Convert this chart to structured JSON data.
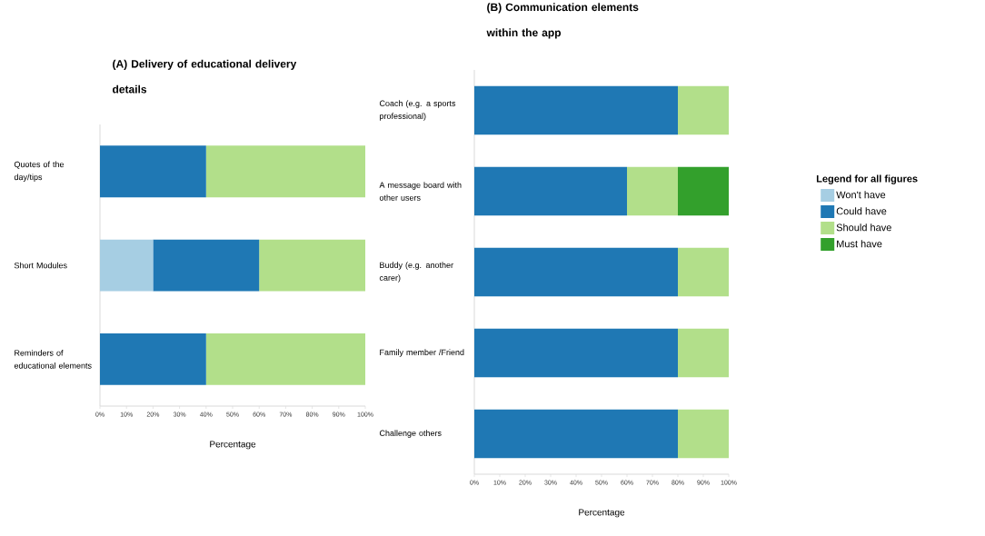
{
  "chart_data": [
    {
      "type": "bar",
      "orientation": "horizontal",
      "stacked": true,
      "title": "(A) Delivery of educational delivery details",
      "xlabel": "Percentage",
      "categories": [
        "Quotes of the day/tips",
        "Short Modules",
        "Reminders of educational elements"
      ],
      "series": [
        {
          "color": "#a6cee3",
          "values": [
            0,
            20,
            0
          ]
        },
        {
          "color": "#1f78b4",
          "values": [
            40,
            40,
            40
          ]
        },
        {
          "color": "#b2df8a",
          "values": [
            60,
            40,
            60
          ]
        }
      ],
      "xlim": [
        0,
        100
      ],
      "xticks": [
        {
          "value": 0,
          "label": "0%"
        },
        {
          "value": 10,
          "label": "10%"
        },
        {
          "value": 20,
          "label": "20%"
        },
        {
          "value": 30,
          "label": "30%"
        },
        {
          "value": 40,
          "label": "40%"
        },
        {
          "value": 50,
          "label": "50%"
        },
        {
          "value": 60,
          "label": "60%"
        },
        {
          "value": 70,
          "label": "70%"
        },
        {
          "value": 80,
          "label": "80%"
        },
        {
          "value": 90,
          "label": "90%"
        },
        {
          "value": 100,
          "label": "100%"
        }
      ]
    },
    {
      "type": "bar",
      "orientation": "horizontal",
      "stacked": true,
      "title": "(B) Communication elements within the app",
      "xlabel": "Percentage",
      "categories": [
        "Coach (e.g. a sports professional)",
        "A message board with other users",
        "Buddy (e.g. another carer)",
        "Family member /Friend",
        "Challenge others"
      ],
      "series": [
        {
          "name": "Won't have",
          "color": "#a6cee3",
          "values": [
            null,
            null,
            null,
            null,
            null
          ]
        },
        {
          "name": "Could have",
          "color": "#1f78b4",
          "values": [
            80,
            60,
            80,
            80,
            80
          ]
        },
        {
          "name": "Should have",
          "color": "#b2df8a",
          "values": [
            20,
            20,
            20,
            20,
            20
          ]
        },
        {
          "name": "Must have",
          "color": "#33a02c",
          "values": [
            0,
            20,
            0,
            0,
            0
          ]
        }
      ],
      "xlim": [
        0,
        100
      ],
      "xticks": [
        {
          "value": 0,
          "label": "0%"
        },
        {
          "value": 10,
          "label": "10%"
        },
        {
          "value": 20,
          "label": "20%"
        },
        {
          "value": 30,
          "label": "30%"
        },
        {
          "value": 40,
          "label": "40%"
        },
        {
          "value": 50,
          "label": "50%"
        },
        {
          "value": 60,
          "label": "60%"
        },
        {
          "value": 70,
          "label": "70%"
        },
        {
          "value": 80,
          "label": "80%"
        },
        {
          "value": 90,
          "label": "90%"
        },
        {
          "value": 100,
          "label": "100%"
        }
      ],
      "legend": "right",
      "legend_title": "Legend for all figures"
    }
  ]
}
